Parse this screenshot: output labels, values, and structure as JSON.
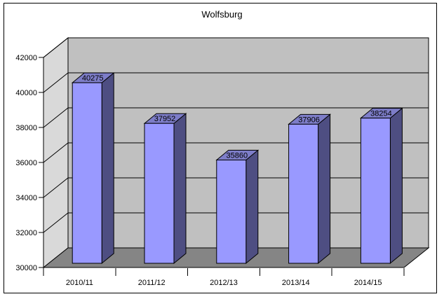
{
  "title": "Wolfsburg",
  "chart_data": {
    "type": "bar",
    "style": "3d-column",
    "title": "Wolfsburg",
    "categories": [
      "2010/11",
      "2011/12",
      "2012/13",
      "2013/14",
      "2014/15"
    ],
    "values": [
      40275,
      37952,
      35860,
      37906,
      38254
    ],
    "data_labels": [
      "40275",
      "37952",
      "35860",
      "37906",
      "38254"
    ],
    "xlabel": "",
    "ylabel": "",
    "ylim": [
      30000,
      42000
    ],
    "ytick_step": 2000,
    "yticks": [
      30000,
      32000,
      34000,
      36000,
      38000,
      40000,
      42000
    ],
    "grid": true,
    "legend_position": "none",
    "colors": {
      "bar_front": "#9999FF",
      "bar_top": "#7D7DC8",
      "bar_side": "#4E4E82",
      "wall_back": "#C0C0C0",
      "wall_side": "#D9D9D9",
      "floor": "#858585",
      "outline": "#000000",
      "background": "#FFFFFF",
      "text": "#000000"
    }
  }
}
